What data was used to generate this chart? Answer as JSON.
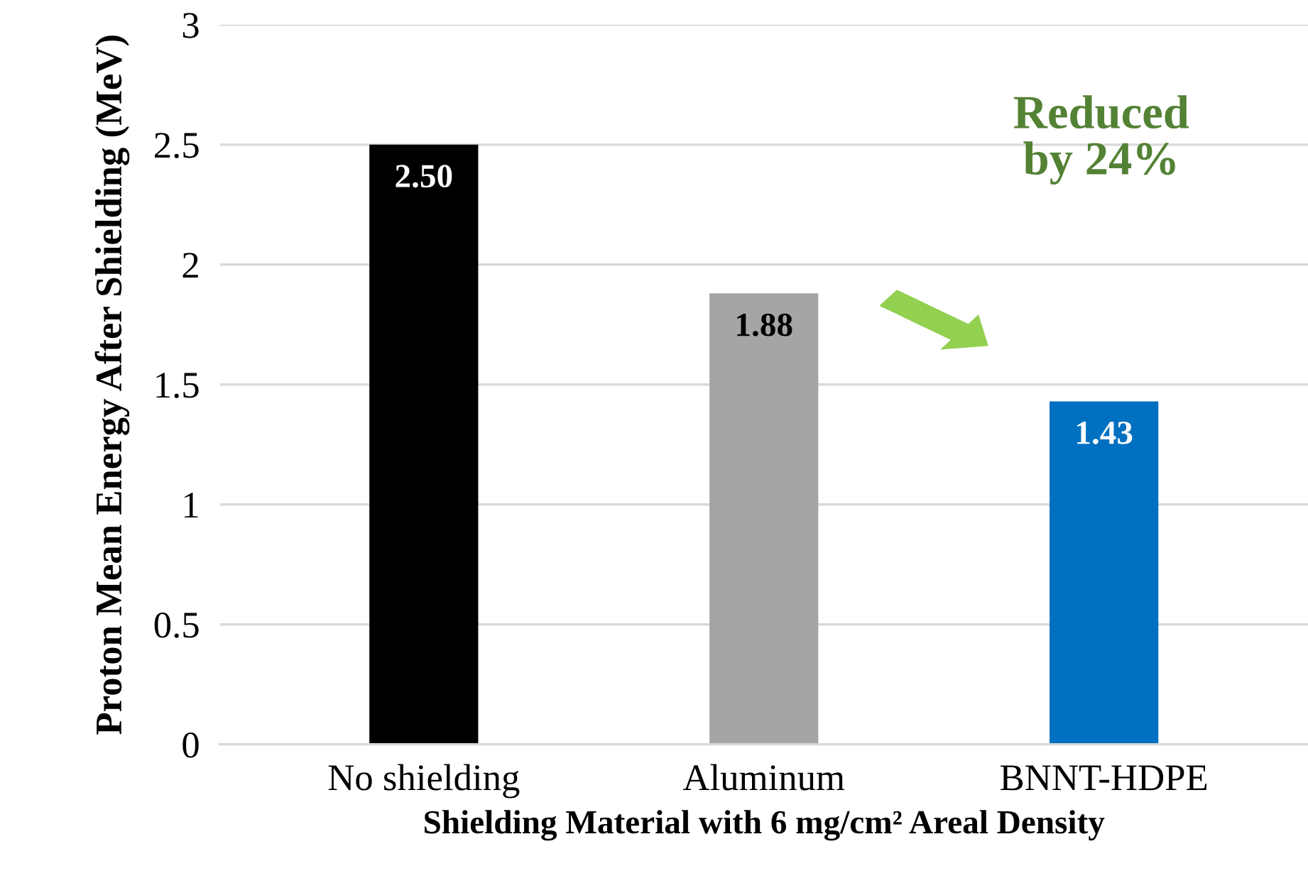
{
  "chart_data": {
    "type": "bar",
    "xlabel": "Shielding Material with 6 mg/cm² Areal Density",
    "ylabel": "Proton Mean Energy After Shielding (MeV)",
    "categories": [
      "No shielding",
      "Aluminum",
      "BNNT-HDPE"
    ],
    "values": [
      2.5,
      1.88,
      1.43
    ],
    "colors": [
      "#000000",
      "#a5a5a5",
      "#0070c0"
    ],
    "value_labels": [
      "2.50",
      "1.88",
      "1.43"
    ],
    "ylim": [
      0,
      3
    ],
    "yticks": [
      0,
      0.5,
      1,
      1.5,
      2,
      2.5,
      3
    ],
    "grid": "y",
    "annotations": [
      "Reduced\nby 24%"
    ]
  }
}
